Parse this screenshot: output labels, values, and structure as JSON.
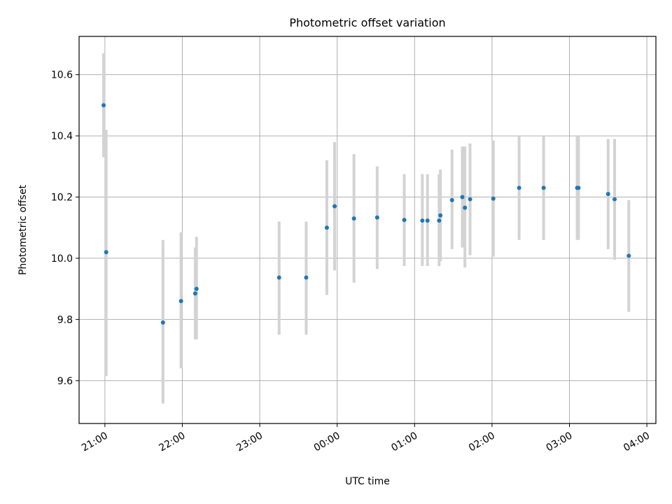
{
  "chart_data": {
    "type": "scatter",
    "title": "Photometric offset variation",
    "xlabel": "UTC time",
    "ylabel": "Photometric offset",
    "grid": true,
    "x_is_time": true,
    "xlim": [
      "20:40",
      "04:07"
    ],
    "ylim": [
      9.46,
      10.725
    ],
    "x_ticks": [
      "21:00",
      "22:00",
      "23:00",
      "00:00",
      "01:00",
      "02:00",
      "03:00",
      "04:00"
    ],
    "y_ticks": [
      9.6,
      9.8,
      10.0,
      10.2,
      10.4,
      10.6
    ],
    "y_tick_labels": [
      "9.6",
      "9.8",
      "10.0",
      "10.2",
      "10.4",
      "10.6"
    ],
    "marker_color": "#1f77b4",
    "errorbar_color": "#d3d3d3",
    "series": [
      {
        "points": [
          {
            "x": "20:59",
            "y": 10.5,
            "low": 10.33,
            "high": 10.67
          },
          {
            "x": "21:01",
            "y": 10.02,
            "low": 9.615,
            "high": 10.42
          },
          {
            "x": "21:45",
            "y": 9.79,
            "low": 9.525,
            "high": 10.06
          },
          {
            "x": "21:59",
            "y": 9.86,
            "low": 9.64,
            "high": 10.085
          },
          {
            "x": "22:10",
            "y": 9.885,
            "low": 9.735,
            "high": 10.035
          },
          {
            "x": "22:11",
            "y": 9.9,
            "low": 9.735,
            "high": 10.07
          },
          {
            "x": "23:15",
            "y": 9.937,
            "low": 9.75,
            "high": 10.12
          },
          {
            "x": "23:36",
            "y": 9.937,
            "low": 9.75,
            "high": 10.12
          },
          {
            "x": "23:52",
            "y": 10.1,
            "low": 9.88,
            "high": 10.32
          },
          {
            "x": "23:58",
            "y": 10.17,
            "low": 9.96,
            "high": 10.38
          },
          {
            "x": "00:13",
            "y": 10.13,
            "low": 9.92,
            "high": 10.34
          },
          {
            "x": "00:31",
            "y": 10.133,
            "low": 9.965,
            "high": 10.3
          },
          {
            "x": "00:52",
            "y": 10.125,
            "low": 9.975,
            "high": 10.275
          },
          {
            "x": "01:06",
            "y": 10.123,
            "low": 9.975,
            "high": 10.275
          },
          {
            "x": "01:10",
            "y": 10.123,
            "low": 9.975,
            "high": 10.275
          },
          {
            "x": "01:19",
            "y": 10.123,
            "low": 9.975,
            "high": 10.275
          },
          {
            "x": "01:20",
            "y": 10.14,
            "low": 9.99,
            "high": 10.29
          },
          {
            "x": "01:29",
            "y": 10.19,
            "low": 10.03,
            "high": 10.355
          },
          {
            "x": "01:37",
            "y": 10.2,
            "low": 10.035,
            "high": 10.365
          },
          {
            "x": "01:39",
            "y": 10.165,
            "low": 9.97,
            "high": 10.365
          },
          {
            "x": "01:43",
            "y": 10.193,
            "low": 10.01,
            "high": 10.375
          },
          {
            "x": "02:01",
            "y": 10.195,
            "low": 10.005,
            "high": 10.385
          },
          {
            "x": "02:21",
            "y": 10.23,
            "low": 10.06,
            "high": 10.4
          },
          {
            "x": "02:40",
            "y": 10.23,
            "low": 10.06,
            "high": 10.4
          },
          {
            "x": "03:06",
            "y": 10.23,
            "low": 10.06,
            "high": 10.4
          },
          {
            "x": "03:07",
            "y": 10.23,
            "low": 10.06,
            "high": 10.4
          },
          {
            "x": "03:30",
            "y": 10.21,
            "low": 10.03,
            "high": 10.39
          },
          {
            "x": "03:35",
            "y": 10.193,
            "low": 9.995,
            "high": 10.39
          },
          {
            "x": "03:46",
            "y": 10.008,
            "low": 9.825,
            "high": 10.19
          }
        ]
      }
    ]
  }
}
